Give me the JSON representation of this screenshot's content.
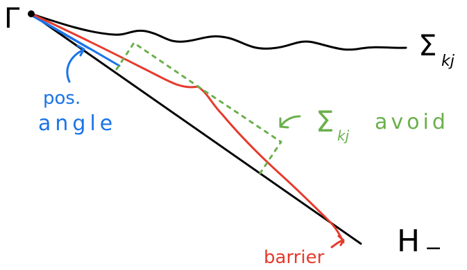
{
  "labels": {
    "gamma": "Γ",
    "sigma_top": "Σ",
    "sigma_top_sub": "kj",
    "pos_angle_line1": "pos.",
    "pos_angle_line2": "angle",
    "sigma_avoid_symbol": "Σ",
    "sigma_avoid_sub": "kj",
    "sigma_avoid_word": "avoid",
    "h_minus": "H",
    "h_minus_sup": "−",
    "barrier": "barrier"
  },
  "colors": {
    "ink": "#000000",
    "blue": "#1a73e8",
    "red": "#e53b2c",
    "green": "#6ab04c"
  }
}
